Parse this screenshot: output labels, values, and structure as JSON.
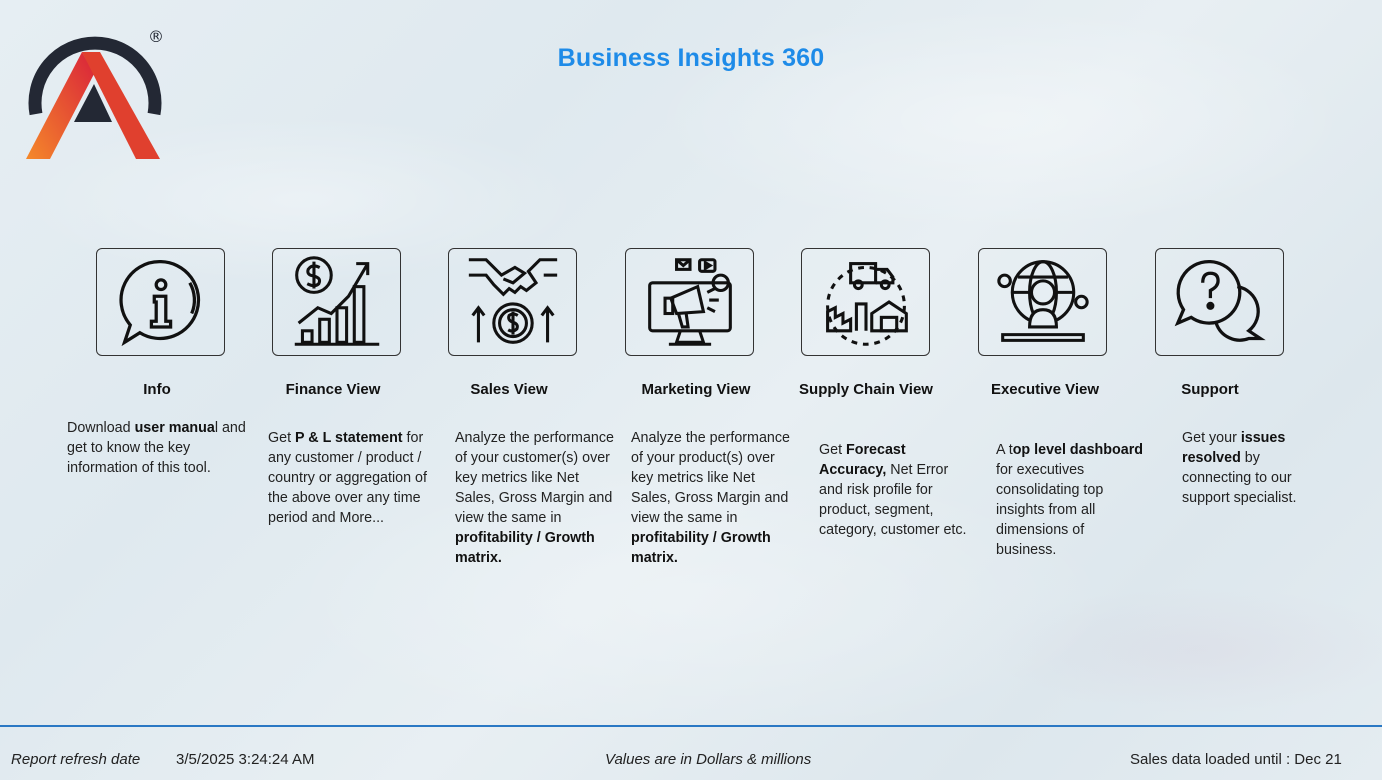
{
  "title": "Business Insights 360",
  "logo": {
    "icon": "atliq-logo-icon",
    "registered": "®"
  },
  "colors": {
    "accent": "#1e8be8",
    "footer_line": "#2a78c4",
    "logo_orange": "#f07a2a",
    "logo_red": "#d9233a",
    "logo_dark": "#232834"
  },
  "tiles": [
    {
      "icon": "info-speech-bubble-icon",
      "label": "Info"
    },
    {
      "icon": "finance-growth-chart-icon",
      "label": "Finance View"
    },
    {
      "icon": "handshake-money-icon",
      "label": "Sales View"
    },
    {
      "icon": "digital-marketing-megaphone-icon",
      "label": "Marketing View"
    },
    {
      "icon": "supply-chain-truck-warehouse-icon",
      "label": "Supply Chain View"
    },
    {
      "icon": "executive-globe-person-icon",
      "label": "Executive View"
    },
    {
      "icon": "support-question-bubbles-icon",
      "label": "Support"
    }
  ],
  "descriptions": {
    "info": [
      "Download ",
      "user manua",
      "l and get to know the key information of this tool."
    ],
    "finance": [
      "Get  ",
      "P & L statement",
      " for any customer / product / country or aggregation of the above over any time period and More..."
    ],
    "sales": [
      "Analyze the performance of your customer(s) over key metrics like Net Sales, Gross Margin and view the same in ",
      "profitability / Growth matrix."
    ],
    "marketing": [
      "Analyze the performance of your product(s) over key metrics like Net Sales, Gross Margin and view the same in ",
      "profitability / Growth matrix."
    ],
    "supply": [
      "Get ",
      "Forecast Accuracy,",
      " Net Error and risk profile for product, segment, category, customer etc."
    ],
    "executive": [
      "A t",
      "op level dashboard",
      " for executives consolidating top insights from all dimensions of business."
    ],
    "support": [
      "Get your ",
      "issues resolved",
      " by connecting to our support specialist."
    ]
  },
  "footer": {
    "refresh_label": "Report refresh date",
    "refresh_value": "3/5/2025 3:24:24 AM",
    "values_note": "Values are in Dollars & millions",
    "loaded_until": "Sales data loaded until : Dec 21"
  }
}
